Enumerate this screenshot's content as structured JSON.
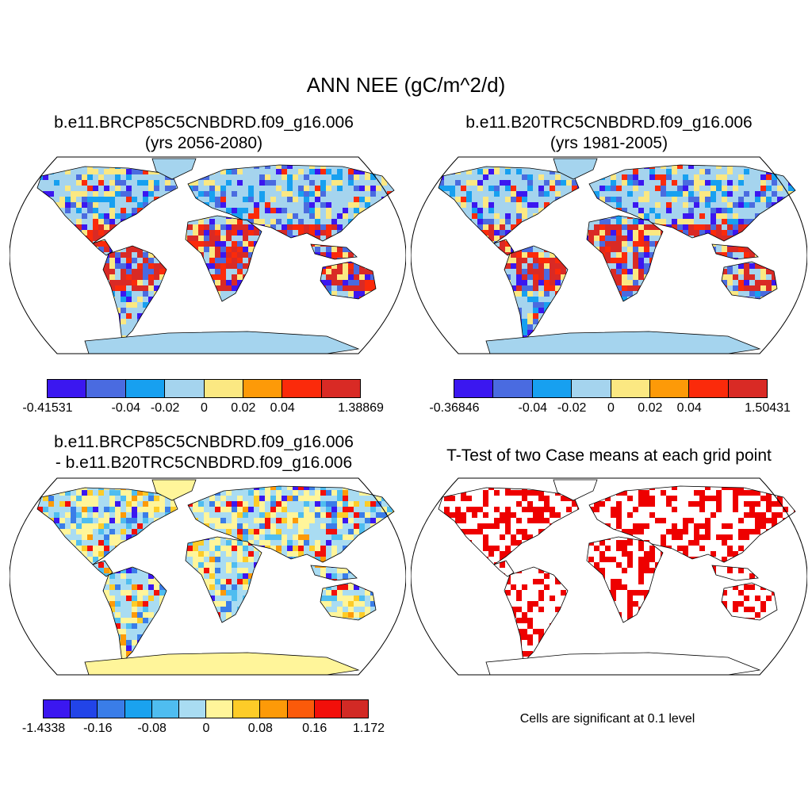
{
  "main_title": "ANN NEE (gC/m^2/d)",
  "panels": [
    {
      "title_line1": "b.e11.BRCP85C5CNBDRD.f09_g16.006",
      "title_line2": "(yrs 2056-2080)"
    },
    {
      "title_line1": "b.e11.B20TRC5CNBDRD.f09_g16.006",
      "title_line2": "(yrs 1981-2005)"
    },
    {
      "title_line1": "b.e11.BRCP85C5CNBDRD.f09_g16.006",
      "title_line2": "- b.e11.B20TRC5CNBDRD.f09_g16.006"
    },
    {
      "title_line1": "T-Test of two Case means at each grid point"
    }
  ],
  "colorbars": [
    {
      "colors": [
        "#3b17f0",
        "#4a6be0",
        "#17a0f0",
        "#a5d4ee",
        "#fbe882",
        "#fd9a08",
        "#fb2a0a",
        "#d92a25"
      ],
      "labels": [
        "-0.41531",
        "-0.04",
        "-0.02",
        "0",
        "0.02",
        "0.04",
        "1.38869"
      ]
    },
    {
      "colors": [
        "#3b17f0",
        "#4a6be0",
        "#17a0f0",
        "#a5d4ee",
        "#fbe882",
        "#fd9a08",
        "#fb2a0a",
        "#d92a25"
      ],
      "labels": [
        "-0.36846",
        "-0.04",
        "-0.02",
        "0",
        "0.02",
        "0.04",
        "1.50431"
      ]
    },
    {
      "colors": [
        "#3b17f0",
        "#2244e8",
        "#3a7de8",
        "#1aa2ef",
        "#4fbdf0",
        "#a9dcf2",
        "#fff59a",
        "#fdcc28",
        "#fd9a08",
        "#fb5a0a",
        "#f20f0a",
        "#d22a25"
      ],
      "labels": [
        "-1.4338",
        "-0.16",
        "-0.08",
        "0",
        "0.08",
        "0.16",
        "1.172"
      ]
    }
  ],
  "footnote": "Cells are significant at 0.1 level",
  "colors": {
    "ocean": "#ffffff",
    "significant": "#ee0000",
    "coastline": "#000000"
  }
}
